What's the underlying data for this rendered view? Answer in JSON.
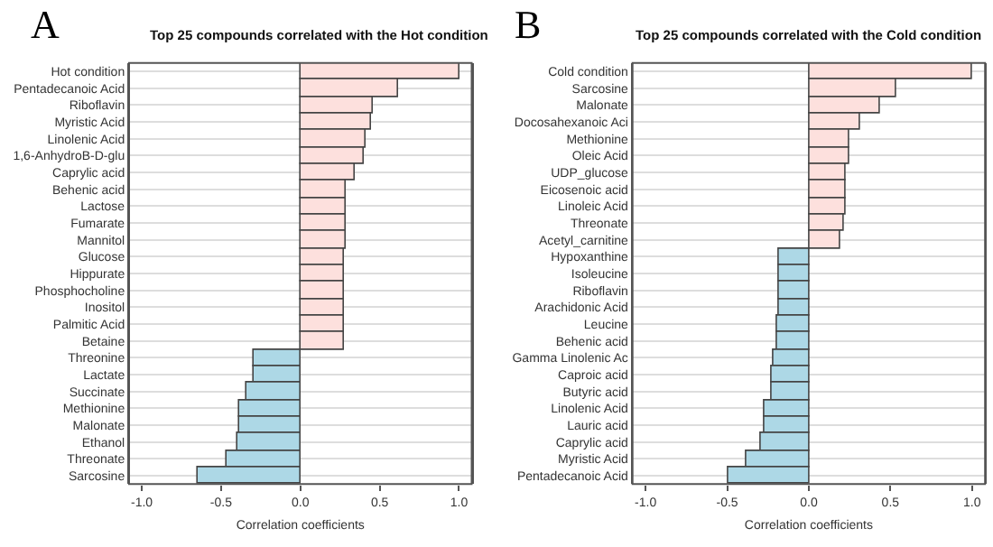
{
  "chart_data": [
    {
      "type": "bar",
      "orientation": "horizontal",
      "title": "Top 25 compounds correlated with the Hot condition",
      "xlabel": "Correlation coefficients",
      "annotations": [
        "A"
      ],
      "categories": [
        "Hot condition",
        "Pentadecanoic Acid",
        "Riboflavin",
        "Myristic Acid",
        "Linolenic Acid",
        "1,6-AnhydroB-D-glu",
        "Caprylic acid",
        "Behenic acid",
        "Lactose",
        "Fumarate",
        "Mannitol",
        "Glucose",
        "Hippurate",
        "Phosphocholine",
        "Inositol",
        "Palmitic Acid",
        "Betaine",
        "Threonine",
        "Lactate",
        "Succinate",
        "Methionine",
        "Malonate",
        "Ethanol",
        "Threonate",
        "Sarcosine"
      ],
      "values": [
        1.0,
        0.62,
        0.46,
        0.45,
        0.41,
        0.4,
        0.34,
        0.29,
        0.29,
        0.29,
        0.29,
        0.28,
        0.28,
        0.28,
        0.28,
        0.28,
        0.28,
        -0.29,
        -0.29,
        -0.34,
        -0.38,
        -0.38,
        -0.4,
        -0.46,
        -0.65
      ],
      "colors": [
        "#fde0dd",
        "#fde0dd",
        "#fde0dd",
        "#fde0dd",
        "#fde0dd",
        "#fde0dd",
        "#fde0dd",
        "#fde0dd",
        "#fde0dd",
        "#fde0dd",
        "#fde0dd",
        "#fde0dd",
        "#fde0dd",
        "#fde0dd",
        "#fde0dd",
        "#fde0dd",
        "#fde0dd",
        "#add8e6",
        "#add8e6",
        "#add8e6",
        "#add8e6",
        "#add8e6",
        "#add8e6",
        "#add8e6",
        "#add8e6"
      ],
      "xlim": [
        -1.08,
        1.08
      ],
      "xticks": [
        {
          "value": -1,
          "label": "-1.0"
        },
        {
          "value": -0.5,
          "label": "-0.5"
        },
        {
          "value": 0,
          "label": "0.0"
        },
        {
          "value": 0.5,
          "label": "0.5"
        },
        {
          "value": 1,
          "label": "1.0"
        }
      ],
      "grid": "y",
      "legend": false
    },
    {
      "type": "bar",
      "orientation": "horizontal",
      "title": "Top 25 compounds correlated with the Cold condition",
      "xlabel": "Correlation coefficients",
      "annotations": [
        "B"
      ],
      "categories": [
        "Cold condition",
        "Sarcosine",
        "Malonate",
        "Docosahexanoic Aci",
        "Methionine",
        "Oleic Acid",
        "UDP_glucose",
        "Eicosenoic acid",
        "Linoleic Acid",
        "Threonate",
        "Acetyl_carnitine",
        "Hypoxanthine",
        "Isoleucine",
        "Riboflavin",
        "Arachidonic Acid",
        "Leucine",
        "Behenic acid",
        "Gamma Linolenic Ac",
        "Caproic acid",
        "Butyric acid",
        "Linolenic Acid",
        "Lauric acid",
        "Caprylic acid",
        "Myristic Acid",
        "Pentadecanoic Acid"
      ],
      "values": [
        1.0,
        0.54,
        0.44,
        0.31,
        0.25,
        0.25,
        0.23,
        0.23,
        0.22,
        0.21,
        0.19,
        -0.18,
        -0.18,
        -0.18,
        -0.18,
        -0.19,
        -0.2,
        -0.22,
        -0.23,
        -0.23,
        -0.27,
        -0.27,
        -0.3,
        -0.38,
        -0.49
      ],
      "colors": [
        "#fde0dd",
        "#fde0dd",
        "#fde0dd",
        "#fde0dd",
        "#fde0dd",
        "#fde0dd",
        "#fde0dd",
        "#fde0dd",
        "#fde0dd",
        "#fde0dd",
        "#fde0dd",
        "#add8e6",
        "#add8e6",
        "#add8e6",
        "#add8e6",
        "#add8e6",
        "#add8e6",
        "#add8e6",
        "#add8e6",
        "#add8e6",
        "#add8e6",
        "#add8e6",
        "#add8e6",
        "#add8e6",
        "#add8e6"
      ],
      "xlim": [
        -1.08,
        1.08
      ],
      "xticks": [
        {
          "value": -1,
          "label": "-1.0"
        },
        {
          "value": -0.5,
          "label": "-0.5"
        },
        {
          "value": 0,
          "label": "0.0"
        },
        {
          "value": 0.5,
          "label": "0.5"
        },
        {
          "value": 1,
          "label": "1.0"
        }
      ],
      "grid": "y",
      "legend": false
    }
  ]
}
